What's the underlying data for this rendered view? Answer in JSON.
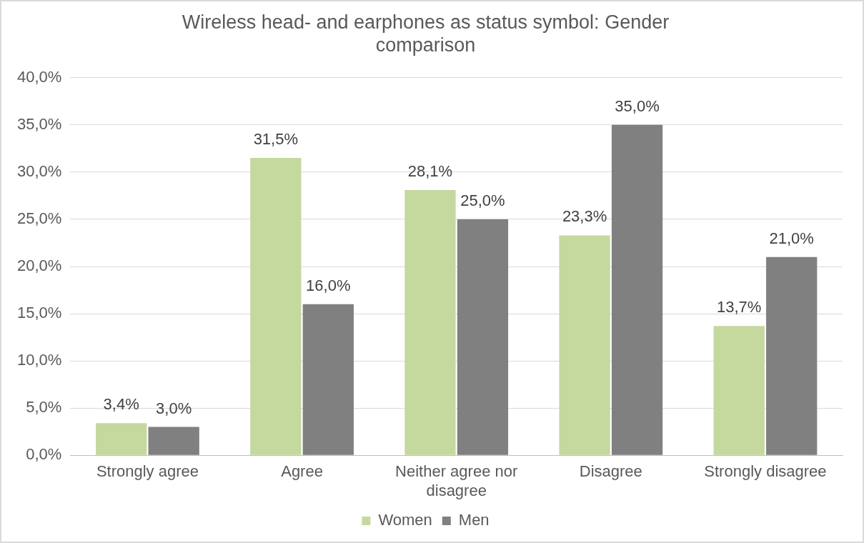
{
  "chart_data": {
    "type": "bar",
    "title": "Wireless head- and earphones as status symbol: Gender comparison",
    "categories": [
      "Strongly agree",
      "Agree",
      "Neither agree nor disagree",
      "Disagree",
      "Strongly disagree"
    ],
    "series": [
      {
        "name": "Women",
        "color": "#c5d89e",
        "values": [
          3.4,
          31.5,
          28.1,
          23.3,
          13.7
        ],
        "value_labels": [
          "3,4%",
          "31,5%",
          "28,1%",
          "23,3%",
          "13,7%"
        ]
      },
      {
        "name": "Men",
        "color": "#808080",
        "values": [
          3.0,
          16.0,
          25.0,
          35.0,
          21.0
        ],
        "value_labels": [
          "3,0%",
          "16,0%",
          "25,0%",
          "35,0%",
          "21,0%"
        ]
      }
    ],
    "ylim": [
      0,
      40
    ],
    "yticks": [
      {
        "value": 0,
        "label": "0,0%"
      },
      {
        "value": 5,
        "label": "5,0%"
      },
      {
        "value": 10,
        "label": "10,0%"
      },
      {
        "value": 15,
        "label": "15,0%"
      },
      {
        "value": 20,
        "label": "20,0%"
      },
      {
        "value": 25,
        "label": "25,0%"
      },
      {
        "value": 30,
        "label": "30,0%"
      },
      {
        "value": 35,
        "label": "35,0%"
      },
      {
        "value": 40,
        "label": "40,0%"
      }
    ],
    "grid": "y",
    "legend": "bottom"
  }
}
